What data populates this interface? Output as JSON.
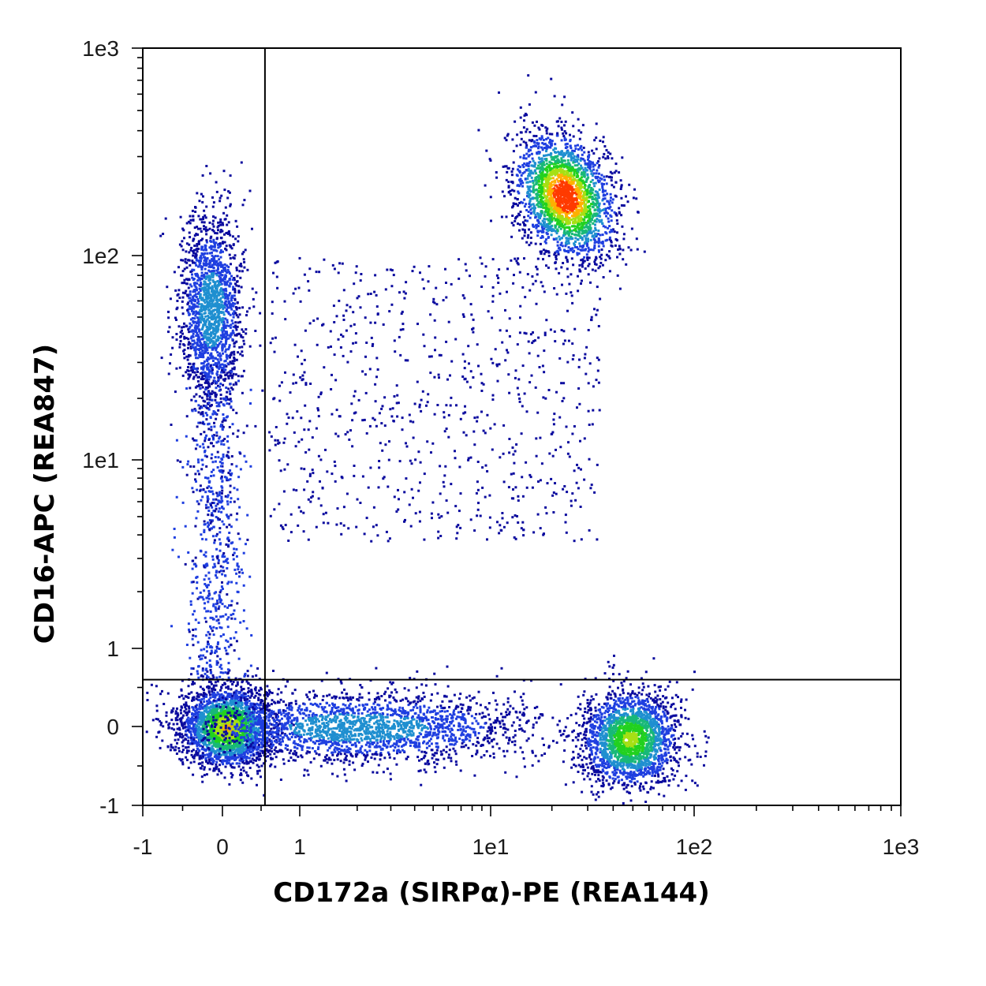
{
  "chart_data": {
    "type": "scatter",
    "subtype": "flow-cytometry-density-dot-plot",
    "xlabel": "CD172a (SIRPα)-PE (REA144)",
    "ylabel": "CD16-APC (REA847)",
    "x_scale": "biexponential",
    "y_scale": "biexponential",
    "xlim": [
      -1,
      1000
    ],
    "ylim": [
      -1,
      1000
    ],
    "x_ticks": [
      {
        "value": -1,
        "label": "-1"
      },
      {
        "value": 0,
        "label": "0"
      },
      {
        "value": 1,
        "label": "1"
      },
      {
        "value": 10,
        "label": "1e1"
      },
      {
        "value": 100,
        "label": "1e2"
      },
      {
        "value": 1000,
        "label": "1e3"
      }
    ],
    "y_ticks": [
      {
        "value": -1,
        "label": "-1"
      },
      {
        "value": 0,
        "label": "0"
      },
      {
        "value": 1,
        "label": "1"
      },
      {
        "value": 10,
        "label": "1e1"
      },
      {
        "value": 100,
        "label": "1e2"
      },
      {
        "value": 1000,
        "label": "1e3"
      }
    ],
    "quadrant_gate": {
      "x": 0.55,
      "y": 0.6
    },
    "density_colormap": [
      "#0a0a9e",
      "#1f3fe0",
      "#1f8fd0",
      "#18b878",
      "#22d11f",
      "#a6e015",
      "#ffb000",
      "#ff3b00"
    ],
    "populations": [
      {
        "x_center": 0.05,
        "y_center": 0.0,
        "peak_density": "green"
      },
      {
        "x_center": 2.0,
        "y_center": 0.0,
        "peak_density": "blue"
      },
      {
        "x_center": 48,
        "y_center": -0.15,
        "peak_density": "green"
      },
      {
        "x_center": -0.15,
        "y_center": 55,
        "peak_density": "blue"
      },
      {
        "x_center": 23,
        "y_center": 195,
        "peak_density": "red"
      },
      {
        "x_center": 5,
        "y_center": 20,
        "peak_density": "sparse"
      }
    ],
    "grid": false,
    "legend": "none"
  }
}
